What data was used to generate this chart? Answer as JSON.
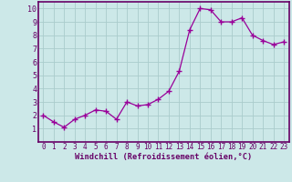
{
  "x": [
    0,
    1,
    2,
    3,
    4,
    5,
    6,
    7,
    8,
    9,
    10,
    11,
    12,
    13,
    14,
    15,
    16,
    17,
    18,
    19,
    20,
    21,
    22,
    23
  ],
  "y": [
    2.0,
    1.5,
    1.1,
    1.7,
    2.0,
    2.4,
    2.3,
    1.7,
    3.0,
    2.7,
    2.8,
    3.2,
    3.8,
    5.3,
    8.4,
    10.0,
    9.9,
    9.0,
    9.0,
    9.3,
    8.0,
    7.6,
    7.3,
    7.5
  ],
  "line_color": "#990099",
  "marker": "+",
  "marker_size": 4,
  "marker_lw": 1.0,
  "line_width": 0.9,
  "bg_color": "#cce8e8",
  "grid_color": "#aacccc",
  "tick_label_color": "#660066",
  "xlabel": "Windchill (Refroidissement éolien,°C)",
  "xlabel_color": "#660066",
  "xlabel_fontsize": 6.2,
  "xlim": [
    -0.5,
    23.5
  ],
  "ylim": [
    0,
    10.5
  ],
  "yticks": [
    1,
    2,
    3,
    4,
    5,
    6,
    7,
    8,
    9,
    10
  ],
  "xticks": [
    0,
    1,
    2,
    3,
    4,
    5,
    6,
    7,
    8,
    9,
    10,
    11,
    12,
    13,
    14,
    15,
    16,
    17,
    18,
    19,
    20,
    21,
    22,
    23
  ],
  "tick_fontsize": 5.5,
  "spine_color": "#660066",
  "border_color": "#660066"
}
